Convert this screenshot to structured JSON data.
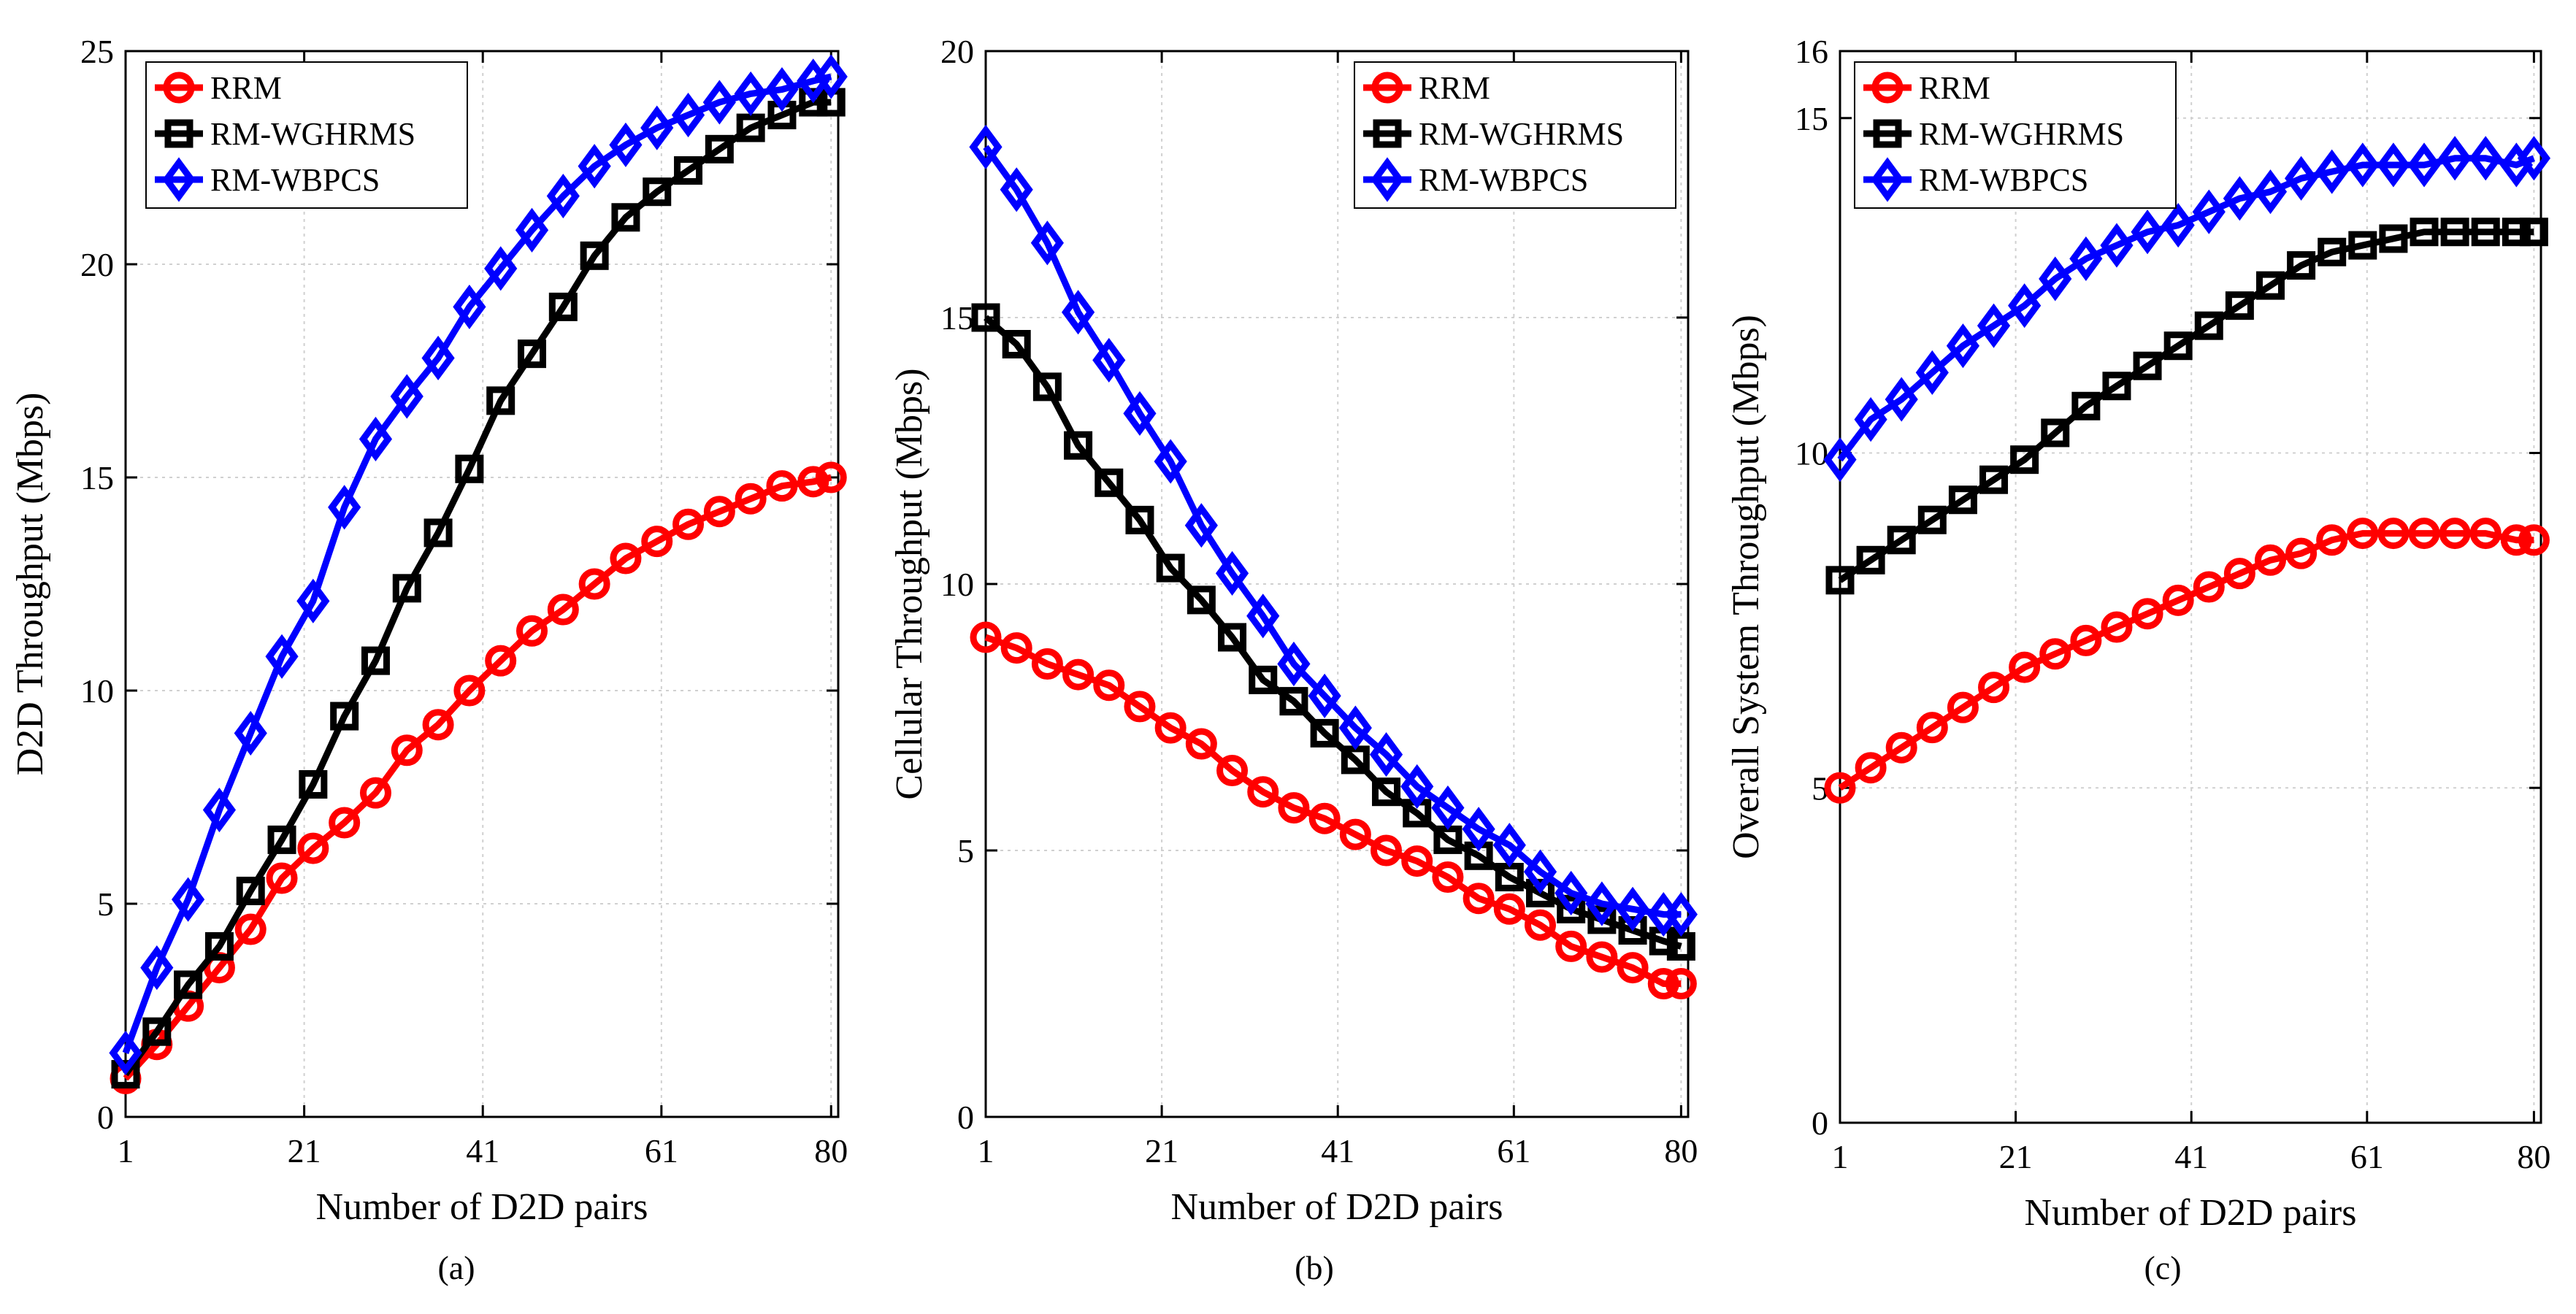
{
  "chart_data": [
    {
      "type": "line",
      "caption": "(a)",
      "xlabel": "Number of D2D pairs",
      "ylabel": "D2D Throughput (Mbps)",
      "xlim": [
        1,
        80
      ],
      "ylim": [
        0,
        25
      ],
      "xticks": [
        1,
        21,
        41,
        61,
        80
      ],
      "yticks": [
        0,
        5,
        10,
        15,
        20,
        25
      ],
      "grid": true,
      "legend_position": "top-left",
      "x": [
        1,
        4.5,
        8,
        11.5,
        15,
        18.5,
        22,
        25.5,
        29,
        32.5,
        36,
        39.5,
        43,
        46.5,
        50,
        53.5,
        57,
        60.5,
        64,
        67.5,
        71,
        74.5,
        78,
        80
      ],
      "series": [
        {
          "name": "RRM",
          "color": "#ff0000",
          "marker": "circle",
          "values": [
            0.9,
            1.7,
            2.6,
            3.5,
            4.4,
            5.6,
            6.3,
            6.9,
            7.6,
            8.6,
            9.2,
            10.0,
            10.7,
            11.4,
            11.9,
            12.5,
            13.1,
            13.5,
            13.9,
            14.2,
            14.5,
            14.8,
            14.9,
            15.0
          ]
        },
        {
          "name": "RM-WGHRMS",
          "color": "#000000",
          "marker": "square",
          "values": [
            1.0,
            2.0,
            3.1,
            4.0,
            5.3,
            6.5,
            7.8,
            9.4,
            10.7,
            12.4,
            13.7,
            15.2,
            16.8,
            17.9,
            19.0,
            20.2,
            21.1,
            21.7,
            22.2,
            22.7,
            23.2,
            23.5,
            23.8,
            23.8
          ]
        },
        {
          "name": "RM-WBPCS",
          "color": "#0000ff",
          "marker": "diamond",
          "values": [
            1.5,
            3.5,
            5.1,
            7.2,
            9.0,
            10.8,
            12.1,
            14.3,
            15.9,
            16.9,
            17.8,
            19.0,
            19.9,
            20.8,
            21.6,
            22.3,
            22.8,
            23.2,
            23.5,
            23.8,
            24.0,
            24.1,
            24.3,
            24.4
          ]
        }
      ]
    },
    {
      "type": "line",
      "caption": "(b)",
      "xlabel": "Number of D2D pairs",
      "ylabel": "Cellular Throughput (Mbps)",
      "xlim": [
        1,
        80
      ],
      "ylim": [
        0,
        20
      ],
      "xticks": [
        1,
        21,
        41,
        61,
        80
      ],
      "yticks": [
        0,
        5,
        10,
        15,
        20
      ],
      "grid": true,
      "legend_position": "top-right",
      "x": [
        1,
        4.5,
        8,
        11.5,
        15,
        18.5,
        22,
        25.5,
        29,
        32.5,
        36,
        39.5,
        43,
        46.5,
        50,
        53.5,
        57,
        60.5,
        64,
        67.5,
        71,
        74.5,
        78,
        80
      ],
      "series": [
        {
          "name": "RRM",
          "color": "#ff0000",
          "marker": "circle",
          "values": [
            9.0,
            8.8,
            8.5,
            8.3,
            8.1,
            7.7,
            7.3,
            7.0,
            6.5,
            6.1,
            5.8,
            5.6,
            5.3,
            5.0,
            4.8,
            4.5,
            4.1,
            3.9,
            3.6,
            3.2,
            3.0,
            2.8,
            2.5,
            2.5
          ]
        },
        {
          "name": "RM-WGHRMS",
          "color": "#000000",
          "marker": "square",
          "values": [
            15.0,
            14.5,
            13.7,
            12.6,
            11.9,
            11.2,
            10.3,
            9.7,
            9.0,
            8.2,
            7.8,
            7.2,
            6.7,
            6.1,
            5.7,
            5.2,
            4.9,
            4.5,
            4.2,
            3.9,
            3.7,
            3.5,
            3.3,
            3.2
          ]
        },
        {
          "name": "RM-WBPCS",
          "color": "#0000ff",
          "marker": "diamond",
          "values": [
            18.2,
            17.4,
            16.4,
            15.1,
            14.2,
            13.2,
            12.3,
            11.1,
            10.2,
            9.4,
            8.5,
            7.9,
            7.3,
            6.8,
            6.2,
            5.8,
            5.4,
            5.1,
            4.6,
            4.2,
            4.0,
            3.9,
            3.8,
            3.8
          ]
        }
      ]
    },
    {
      "type": "line",
      "caption": "(c)",
      "xlabel": "Number of D2D pairs",
      "ylabel": "Overall System Throughput (Mbps)",
      "xlim": [
        1,
        80
      ],
      "ylim": [
        0,
        16
      ],
      "xticks": [
        1,
        21,
        41,
        61,
        80
      ],
      "yticks": [
        0,
        5,
        10,
        15,
        16
      ],
      "grid": true,
      "legend_position": "top-left",
      "x": [
        1,
        4.5,
        8,
        11.5,
        15,
        18.5,
        22,
        25.5,
        29,
        32.5,
        36,
        39.5,
        43,
        46.5,
        50,
        53.5,
        57,
        60.5,
        64,
        67.5,
        71,
        74.5,
        78,
        80
      ],
      "series": [
        {
          "name": "RRM",
          "color": "#ff0000",
          "marker": "circle",
          "values": [
            5.0,
            5.3,
            5.6,
            5.9,
            6.2,
            6.5,
            6.8,
            7.0,
            7.2,
            7.4,
            7.6,
            7.8,
            8.0,
            8.2,
            8.4,
            8.5,
            8.7,
            8.8,
            8.8,
            8.8,
            8.8,
            8.8,
            8.7,
            8.7
          ]
        },
        {
          "name": "RM-WGHRMS",
          "color": "#000000",
          "marker": "square",
          "values": [
            8.1,
            8.4,
            8.7,
            9.0,
            9.3,
            9.6,
            9.9,
            10.3,
            10.7,
            11.0,
            11.3,
            11.6,
            11.9,
            12.2,
            12.5,
            12.8,
            13.0,
            13.1,
            13.2,
            13.3,
            13.3,
            13.3,
            13.3,
            13.3
          ]
        },
        {
          "name": "RM-WBPCS",
          "color": "#0000ff",
          "marker": "diamond",
          "values": [
            9.9,
            10.5,
            10.8,
            11.2,
            11.6,
            11.9,
            12.2,
            12.6,
            12.9,
            13.1,
            13.3,
            13.4,
            13.6,
            13.8,
            13.9,
            14.1,
            14.2,
            14.3,
            14.3,
            14.3,
            14.4,
            14.4,
            14.3,
            14.4
          ]
        }
      ]
    }
  ]
}
